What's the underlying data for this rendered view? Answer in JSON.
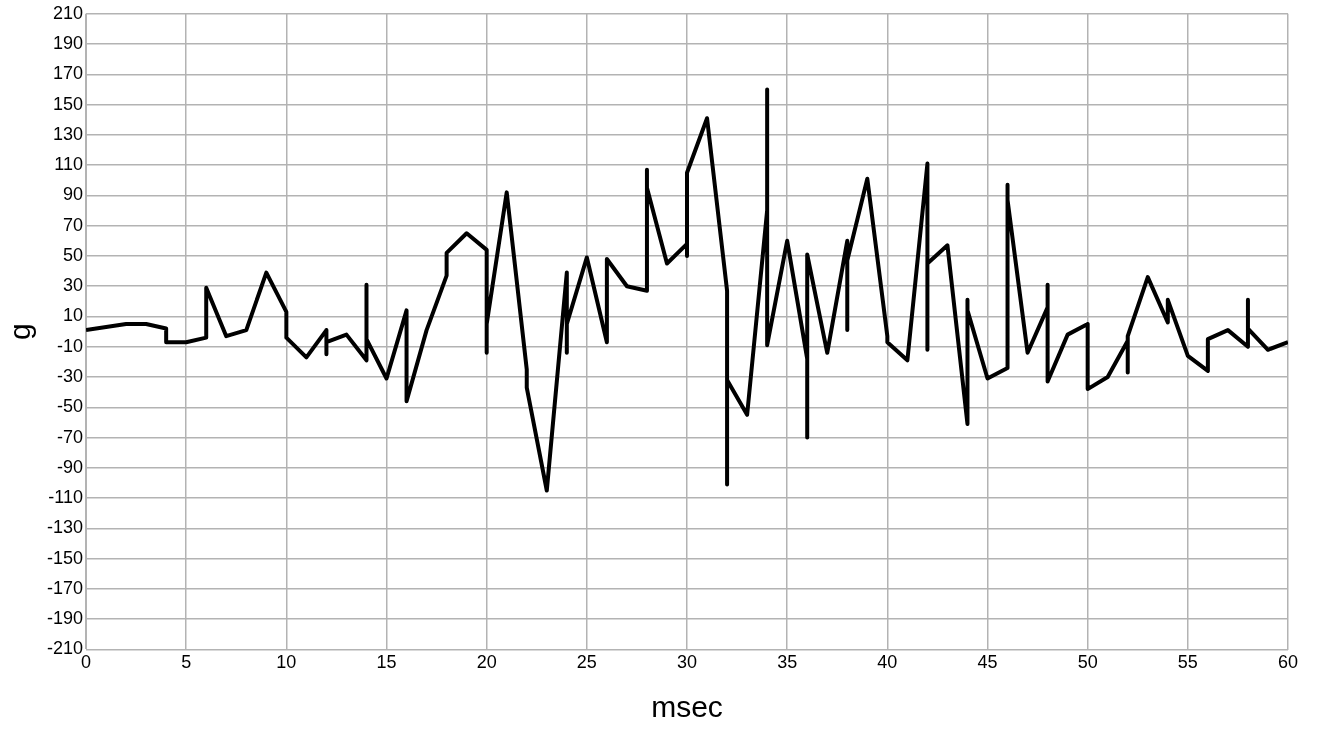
{
  "chart_data": {
    "type": "line",
    "xlabel": "msec",
    "ylabel": "g",
    "grid": true,
    "legend": false,
    "marker": "none",
    "line_style": "solid",
    "xlim": [
      0,
      60
    ],
    "xticks": [
      0,
      5,
      10,
      15,
      20,
      25,
      30,
      35,
      40,
      45,
      50,
      55,
      60
    ],
    "ylim": [
      -210,
      210
    ],
    "yticks": [
      -210,
      -190,
      -170,
      -150,
      -130,
      -110,
      -90,
      -70,
      -50,
      -30,
      -10,
      10,
      30,
      50,
      70,
      90,
      110,
      130,
      150,
      170,
      190,
      210
    ],
    "series": [
      {
        "color": "#000000",
        "x": [
          0,
          2,
          3,
          4,
          4,
          5,
          6,
          6,
          7,
          8,
          9,
          10,
          10,
          11,
          12,
          12,
          12,
          13,
          14,
          14,
          14,
          15,
          16,
          16,
          17,
          18,
          18,
          19,
          20,
          20,
          20,
          21,
          22,
          22,
          23,
          24,
          24,
          24,
          25,
          26,
          26,
          27,
          28,
          28,
          28,
          29,
          30,
          30,
          30,
          31,
          32,
          32,
          32,
          33,
          34,
          34,
          34,
          35,
          36,
          36,
          36,
          37,
          38,
          38,
          38,
          39,
          40,
          40,
          41,
          42,
          42,
          42,
          43,
          44,
          44,
          44,
          45,
          46,
          46,
          46,
          47,
          48,
          48,
          48,
          49,
          50,
          50,
          51,
          52,
          52,
          52,
          53,
          54,
          54,
          55,
          56,
          56,
          57,
          58,
          58,
          58,
          59,
          60
        ],
        "values": [
          1,
          5,
          5,
          2,
          -7,
          -7,
          -4,
          29,
          -3,
          1,
          39,
          13,
          -4,
          -17,
          1,
          -15,
          -7,
          -2,
          -19,
          31,
          -5,
          -31,
          14,
          -46,
          1,
          37,
          52,
          65,
          54,
          -14,
          5,
          92,
          -25,
          -37,
          -105,
          39,
          -14,
          5,
          49,
          -7,
          48,
          30,
          27,
          107,
          95,
          45,
          58,
          50,
          105,
          141,
          27,
          -101,
          -32,
          -55,
          80,
          160,
          -9,
          60,
          -18,
          -70,
          51,
          -14,
          60,
          1,
          47,
          101,
          -3,
          -7,
          -19,
          111,
          -12,
          45,
          57,
          -61,
          21,
          14,
          -31,
          -24,
          97,
          87,
          -14,
          16,
          31,
          -33,
          -2,
          5,
          -38,
          -30,
          -6,
          -27,
          -3,
          36,
          6,
          21,
          -16,
          -26,
          -5,
          1,
          -10,
          21,
          2,
          -12,
          -7
        ]
      }
    ]
  }
}
